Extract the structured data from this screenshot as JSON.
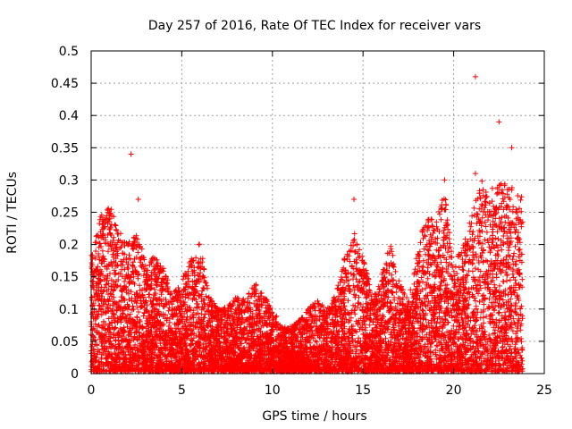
{
  "chart_data": {
    "type": "scatter",
    "title": "Day 257 of 2016, Rate Of TEC Index for receiver vars",
    "xlabel": "GPS time / hours",
    "ylabel": "ROTI / TECUs",
    "xlim": [
      0,
      25
    ],
    "ylim": [
      0,
      0.5
    ],
    "xticks": [
      "0",
      "5",
      "10",
      "15",
      "20",
      "25"
    ],
    "yticks": [
      "0",
      "0.05",
      "0.1",
      "0.15",
      "0.2",
      "0.25",
      "0.3",
      "0.35",
      "0.4",
      "0.45",
      "0.5"
    ],
    "grid": true,
    "marker": "+",
    "color": "#ff0000",
    "series": [
      {
        "name": "vars",
        "description": "dense cloud of ~25000 ROTI samples; envelope below gives the approximate upper bound per time bin",
        "envelope_x": [
          0,
          0.5,
          1,
          1.5,
          2,
          2.5,
          3,
          3.5,
          4,
          4.5,
          5,
          5.5,
          6,
          6.5,
          7,
          7.5,
          8,
          8.5,
          9,
          9.5,
          10,
          10.5,
          11,
          11.5,
          12,
          12.5,
          13,
          13.5,
          14,
          14.5,
          15,
          15.5,
          16,
          16.5,
          17,
          17.5,
          18,
          18.5,
          19,
          19.5,
          20,
          20.5,
          21,
          21.5,
          22,
          22.5,
          23,
          23.5,
          23.8
        ],
        "envelope_y_max": [
          0.18,
          0.24,
          0.26,
          0.22,
          0.2,
          0.22,
          0.17,
          0.18,
          0.16,
          0.12,
          0.14,
          0.18,
          0.2,
          0.12,
          0.1,
          0.1,
          0.12,
          0.11,
          0.14,
          0.12,
          0.1,
          0.07,
          0.07,
          0.08,
          0.1,
          0.11,
          0.1,
          0.12,
          0.18,
          0.22,
          0.18,
          0.12,
          0.15,
          0.2,
          0.14,
          0.11,
          0.19,
          0.25,
          0.23,
          0.28,
          0.16,
          0.2,
          0.24,
          0.3,
          0.28,
          0.3,
          0.29,
          0.28,
          0.28
        ],
        "outliers": [
          {
            "x": 2.2,
            "y": 0.34
          },
          {
            "x": 2.6,
            "y": 0.27
          },
          {
            "x": 14.5,
            "y": 0.27
          },
          {
            "x": 19.5,
            "y": 0.3
          },
          {
            "x": 21.2,
            "y": 0.46
          },
          {
            "x": 21.2,
            "y": 0.31
          },
          {
            "x": 22.5,
            "y": 0.39
          },
          {
            "x": 23.2,
            "y": 0.35
          }
        ]
      }
    ]
  }
}
